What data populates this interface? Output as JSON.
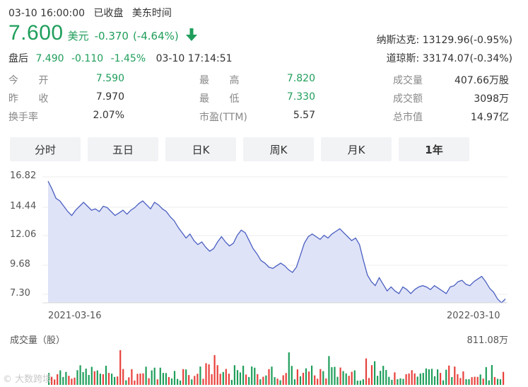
{
  "status": {
    "datetime": "03-10 16:00:00",
    "state": "已收盘",
    "tz": "美东时间"
  },
  "quote": {
    "price": "7.600",
    "unit": "美元",
    "change": "-0.370",
    "change_pct": "(-4.64%)",
    "direction": "down",
    "color_down": "#1f9e5b",
    "color_up": "#e8413c"
  },
  "indices": [
    {
      "name": "纳斯达克:",
      "value": "13129.96(-0.95%)"
    },
    {
      "name": "道琼斯:",
      "value": "33174.07(-0.34%)"
    }
  ],
  "after_hours": {
    "label": "盘后",
    "price": "7.490",
    "change": "-0.110",
    "change_pct": "-1.45%",
    "time": "03-10 17:14:51"
  },
  "stats": [
    [
      {
        "k": "今 开",
        "v": "7.590",
        "green": true
      },
      {
        "k": "最 高",
        "v": "7.820",
        "green": true
      },
      {
        "k": "成交量",
        "v": "407.66万股",
        "green": false
      }
    ],
    [
      {
        "k": "昨 收",
        "v": "7.970",
        "green": false
      },
      {
        "k": "最 低",
        "v": "7.330",
        "green": true
      },
      {
        "k": "成交额",
        "v": "3098万",
        "green": false
      }
    ],
    [
      {
        "k": "换手率",
        "v": "2.07%",
        "green": false
      },
      {
        "k": "市盈(TTM)",
        "v": "5.57",
        "green": false
      },
      {
        "k": "总市值",
        "v": "14.97亿",
        "green": false
      }
    ]
  ],
  "tabs": [
    {
      "label": "分时",
      "active": false
    },
    {
      "label": "五日",
      "active": false
    },
    {
      "label": "日K",
      "active": false
    },
    {
      "label": "周K",
      "active": false
    },
    {
      "label": "月K",
      "active": false
    },
    {
      "label": "1年",
      "active": true
    }
  ],
  "chart_data": {
    "type": "area",
    "y_ticks": [
      "16.82",
      "14.44",
      "12.06",
      "9.68",
      "7.30"
    ],
    "ylim": [
      7.3,
      16.82
    ],
    "x_labels": [
      "2021-03-16",
      "2022-03-10"
    ],
    "grid": true,
    "line_color": "#4a5fc1",
    "fill_color": "#dfe3f7",
    "series": [
      {
        "values": [
          16.5,
          15.9,
          15.2,
          15.0,
          14.6,
          14.2,
          13.9,
          14.3,
          14.6,
          14.9,
          14.6,
          14.3,
          14.4,
          14.2,
          14.6,
          14.5,
          14.2,
          13.9,
          14.1,
          14.3,
          14.0,
          14.3,
          14.5,
          14.8,
          15.0,
          14.7,
          14.4,
          14.9,
          14.7,
          14.4,
          14.2,
          13.8,
          13.5,
          13.0,
          12.6,
          12.2,
          12.5,
          12.0,
          11.7,
          11.9,
          11.5,
          11.2,
          11.4,
          11.9,
          12.3,
          11.9,
          11.6,
          11.8,
          12.4,
          12.8,
          12.6,
          12.0,
          11.4,
          11.0,
          10.5,
          10.3,
          10.0,
          9.9,
          10.1,
          10.3,
          10.1,
          9.8,
          9.6,
          10.0,
          10.9,
          11.8,
          12.3,
          12.5,
          12.3,
          12.1,
          12.4,
          12.2,
          12.5,
          12.7,
          12.9,
          12.6,
          12.3,
          12.0,
          12.2,
          11.7,
          10.5,
          9.4,
          8.9,
          8.6,
          9.2,
          8.7,
          8.2,
          8.5,
          8.2,
          8.0,
          8.5,
          8.3,
          8.0,
          8.3,
          8.5,
          8.6,
          8.5,
          8.3,
          8.6,
          8.4,
          8.2,
          8.0,
          8.5,
          8.6,
          8.9,
          9.0,
          8.7,
          8.6,
          8.9,
          9.1,
          9.3,
          8.9,
          8.4,
          8.1,
          7.6,
          7.3,
          7.6
        ]
      }
    ]
  },
  "volume": {
    "title": "成交量（股）",
    "max_label": "811.08万"
  },
  "watermark": "© 大数跨境"
}
